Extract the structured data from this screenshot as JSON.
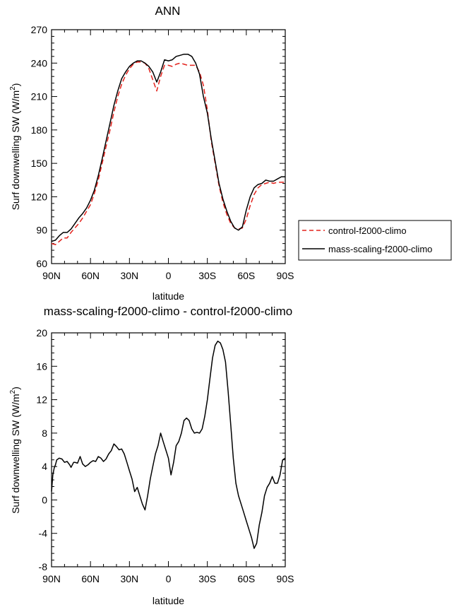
{
  "chart_data": [
    {
      "type": "line",
      "title": "ANN",
      "xlabel": "latitude",
      "ylabel_main": "Surf downwelling SW (W/m",
      "ylabel_sup": "2",
      "ylabel_close": ")",
      "xlim": [
        90,
        -90
      ],
      "ylim": [
        60,
        270
      ],
      "xticks": [
        90,
        60,
        30,
        0,
        -30,
        -60,
        -90
      ],
      "xtick_labels": [
        "90N",
        "60N",
        "30N",
        "0",
        "30S",
        "60S",
        "90S"
      ],
      "yticks": [
        60,
        90,
        120,
        150,
        180,
        210,
        240,
        270
      ],
      "ytick_labels": [
        "60",
        "90",
        "120",
        "150",
        "180",
        "210",
        "240",
        "270"
      ],
      "legend_position": "right",
      "colors": {
        "control": "#e3221c",
        "mass_scaling": "#000000"
      },
      "series": [
        {
          "name": "control-f2000-climo",
          "style": "dashed",
          "x": [
            90,
            87,
            84,
            81,
            78,
            75,
            72,
            69,
            66,
            63,
            60,
            57,
            54,
            51,
            48,
            45,
            42,
            39,
            36,
            33,
            30,
            27,
            24,
            21,
            18,
            15,
            12,
            9,
            6,
            3,
            0,
            -3,
            -6,
            -9,
            -12,
            -15,
            -18,
            -21,
            -24,
            -27,
            -30,
            -33,
            -36,
            -39,
            -42,
            -45,
            -48,
            -51,
            -54,
            -57,
            -60,
            -63,
            -66,
            -69,
            -72,
            -75,
            -78,
            -81,
            -84,
            -87,
            -90
          ],
          "y": [
            78,
            77,
            80,
            83,
            83,
            88,
            92,
            96,
            101,
            107,
            113,
            123,
            135,
            150,
            165,
            180,
            196,
            210,
            221,
            229,
            235,
            239,
            241,
            241,
            240,
            235,
            225,
            215,
            228,
            238,
            238,
            237,
            239,
            240,
            239,
            238,
            238,
            238,
            232,
            220,
            198,
            170,
            150,
            130,
            115,
            104,
            96,
            92,
            91,
            92,
            100,
            112,
            122,
            128,
            131,
            132,
            133,
            132,
            133,
            133,
            133
          ]
        },
        {
          "name": "mass-scaling-f2000-climo",
          "style": "solid",
          "x": [
            90,
            87,
            84,
            81,
            78,
            75,
            72,
            69,
            66,
            63,
            60,
            57,
            54,
            51,
            48,
            45,
            42,
            39,
            36,
            33,
            30,
            27,
            24,
            21,
            18,
            15,
            12,
            9,
            6,
            3,
            0,
            -3,
            -6,
            -9,
            -12,
            -15,
            -18,
            -21,
            -24,
            -27,
            -30,
            -33,
            -36,
            -39,
            -42,
            -45,
            -48,
            -51,
            -54,
            -57,
            -60,
            -63,
            -66,
            -69,
            -72,
            -75,
            -78,
            -81,
            -84,
            -87,
            -90
          ],
          "y": [
            80,
            81,
            85,
            88,
            88,
            91,
            96,
            101,
            105,
            110,
            117,
            126,
            139,
            154,
            170,
            186,
            202,
            215,
            226,
            232,
            237,
            240,
            242,
            242,
            240,
            237,
            232,
            223,
            232,
            243,
            242,
            243,
            246,
            247,
            248,
            248,
            246,
            240,
            230,
            210,
            195,
            172,
            152,
            132,
            118,
            107,
            98,
            92,
            90,
            93,
            108,
            120,
            128,
            131,
            132,
            135,
            134,
            134,
            136,
            138,
            138
          ]
        }
      ]
    },
    {
      "type": "line",
      "title": "mass-scaling-f2000-climo - control-f2000-climo",
      "xlabel": "latitude",
      "ylabel_main": "Surf downwelling SW (W/m",
      "ylabel_sup": "2",
      "ylabel_close": ")",
      "xlim": [
        90,
        -90
      ],
      "ylim": [
        -8,
        20
      ],
      "xticks": [
        90,
        60,
        30,
        0,
        -30,
        -60,
        -90
      ],
      "xtick_labels": [
        "90N",
        "60N",
        "30N",
        "0",
        "30S",
        "60S",
        "90S"
      ],
      "yticks": [
        -8,
        -4,
        0,
        4,
        8,
        12,
        16,
        20
      ],
      "ytick_labels": [
        "-8",
        "-4",
        "0",
        "4",
        "8",
        "12",
        "16",
        "20"
      ],
      "colors": {
        "line": "#000000"
      },
      "series": [
        {
          "style": "solid",
          "x": [
            90,
            89,
            88,
            87,
            86,
            84,
            82,
            80,
            78,
            76,
            75,
            73,
            72,
            70,
            68,
            66,
            64,
            62,
            60,
            58,
            56,
            54,
            52,
            50,
            48,
            46,
            44,
            42,
            40,
            38,
            36,
            34,
            32,
            30,
            28,
            26,
            24,
            22,
            20,
            18,
            16,
            14,
            12,
            10,
            8,
            6,
            4,
            2,
            0,
            -2,
            -4,
            -6,
            -8,
            -10,
            -12,
            -14,
            -16,
            -18,
            -20,
            -22,
            -24,
            -26,
            -28,
            -30,
            -32,
            -34,
            -36,
            -38,
            -40,
            -42,
            -44,
            -46,
            -48,
            -50,
            -52,
            -54,
            -56,
            -58,
            -60,
            -62,
            -64,
            -66,
            -68,
            -70,
            -72,
            -74,
            -76,
            -78,
            -80,
            -82,
            -84,
            -86,
            -88,
            -90
          ],
          "y": [
            1.0,
            3.0,
            3.8,
            4.2,
            4.8,
            5.0,
            4.9,
            4.5,
            4.6,
            4.2,
            3.9,
            4.5,
            4.5,
            4.4,
            5.2,
            4.3,
            4.0,
            4.2,
            4.5,
            4.7,
            4.6,
            5.2,
            5.0,
            4.6,
            4.9,
            5.5,
            5.9,
            6.7,
            6.4,
            6.0,
            6.1,
            5.5,
            4.5,
            3.5,
            2.5,
            1.0,
            1.5,
            0.5,
            -0.5,
            -1.2,
            0.5,
            2.5,
            4.0,
            5.5,
            6.5,
            8.0,
            7.0,
            6.0,
            5.0,
            3.0,
            4.5,
            6.5,
            7.0,
            8.0,
            9.5,
            9.8,
            9.5,
            8.5,
            8.0,
            8.1,
            8.0,
            8.5,
            10.0,
            12.0,
            14.5,
            17.0,
            18.5,
            19.0,
            18.8,
            18.0,
            16.5,
            13.0,
            9.0,
            5.0,
            2.0,
            0.5,
            -0.5,
            -1.5,
            -2.5,
            -3.5,
            -4.5,
            -5.8,
            -5.2,
            -3.0,
            -1.5,
            0.5,
            1.5,
            2.0,
            2.8,
            2.0,
            2.0,
            3.0,
            4.8,
            5.0
          ]
        }
      ]
    }
  ]
}
